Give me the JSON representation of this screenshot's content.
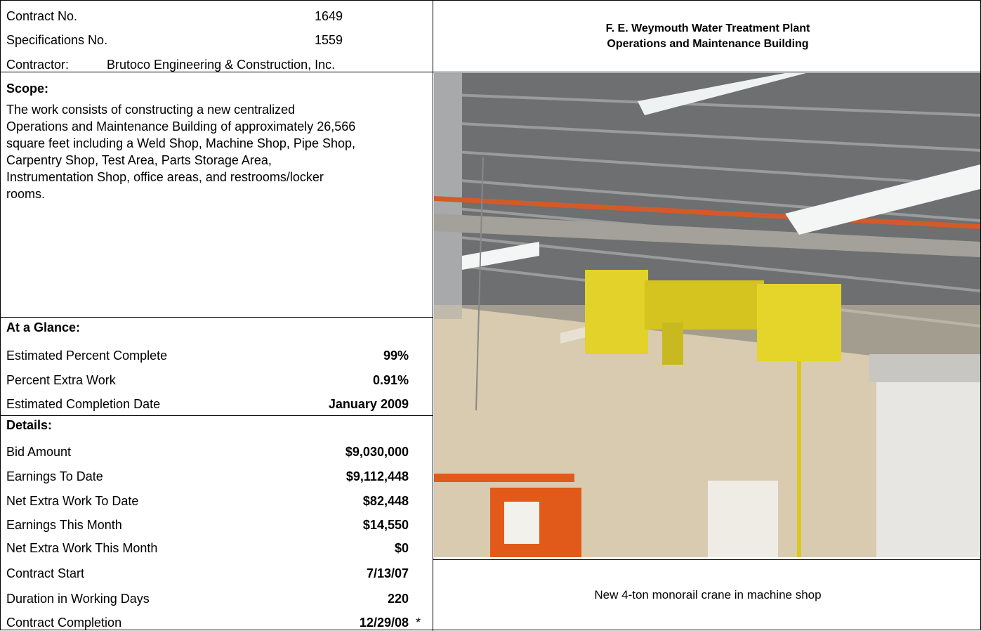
{
  "header": {
    "contract_no_label": "Contract No.",
    "contract_no": "1649",
    "spec_label": "Specifications No.",
    "spec_no": "1559",
    "contractor_label": "Contractor:",
    "contractor": "Brutoco Engineering & Construction, Inc."
  },
  "title": {
    "line1": "F. E. Weymouth Water Treatment Plant",
    "line2": "Operations and Maintenance Building"
  },
  "scope": {
    "heading": "Scope:",
    "lines": [
      "The work consists of  constructing a new centralized",
      "Operations and Maintenance Building of approximately 26,566",
      "square feet including a Weld Shop, Machine Shop, Pipe Shop,",
      "Carpentry Shop, Test Area, Parts Storage Area,",
      "Instrumentation Shop, office areas, and restrooms/locker",
      "rooms."
    ]
  },
  "glance": {
    "heading": "At a Glance:",
    "rows": [
      [
        "Estimated Percent Complete",
        "99%"
      ],
      [
        "Percent Extra Work",
        "0.91%"
      ],
      [
        "Estimated Completion Date",
        "January 2009"
      ]
    ]
  },
  "details": {
    "heading": "Details:",
    "rows": [
      [
        "Bid Amount",
        "$9,030,000"
      ],
      [
        "Earnings To Date",
        "$9,112,448"
      ],
      [
        "Net Extra Work To Date",
        "$82,448"
      ],
      [
        "Earnings This Month",
        "$14,550"
      ],
      [
        "Net Extra Work This Month",
        "$0"
      ],
      [
        "Contract Start",
        "7/13/07"
      ],
      [
        "Duration in Working Days",
        "220"
      ],
      [
        "Contract Completion",
        "12/29/08"
      ]
    ],
    "note_mark": "*"
  },
  "photo_caption": "New 4-ton monorail crane in machine shop"
}
